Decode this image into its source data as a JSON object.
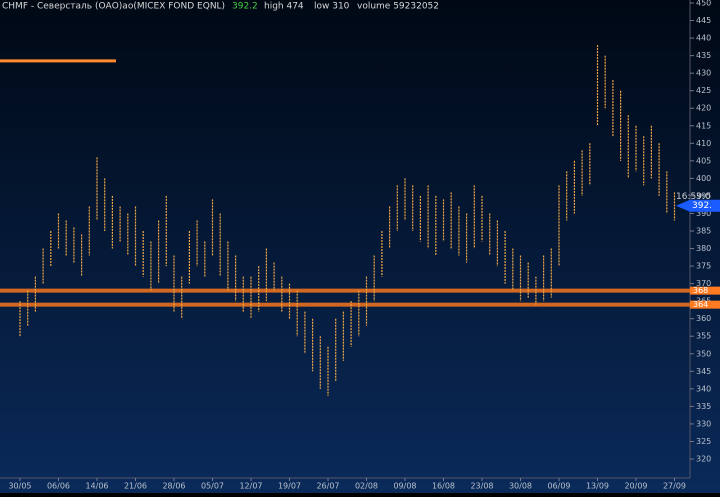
{
  "chart_data": {
    "type": "range-bar",
    "title": "CHMF - Северсталь (ОАО)ао(MICEX FOND EQNL)",
    "last": "392.2",
    "stats": [
      "high 474",
      "low 310",
      "volume 59232052"
    ],
    "time_label": "16:59:0",
    "price_marker": {
      "value": 392.2,
      "label": "392."
    },
    "levels": [
      {
        "value": 368,
        "label": "368"
      },
      {
        "value": 364,
        "label": "364"
      }
    ],
    "profile_peak": 433.5,
    "categories": [
      "30/05",
      null,
      null,
      null,
      null,
      "06/06",
      null,
      null,
      null,
      null,
      "14/06",
      null,
      null,
      null,
      null,
      "21/06",
      null,
      null,
      null,
      null,
      "28/06",
      null,
      null,
      null,
      null,
      "05/07",
      null,
      null,
      null,
      null,
      "12/07",
      null,
      null,
      null,
      null,
      "19/07",
      null,
      null,
      null,
      null,
      "26/07",
      null,
      null,
      null,
      null,
      "02/08",
      null,
      null,
      null,
      null,
      "09/08",
      null,
      null,
      null,
      null,
      "16/08",
      null,
      null,
      null,
      null,
      "23/08",
      null,
      null,
      null,
      null,
      "30/08",
      null,
      null,
      null,
      null,
      "06/09",
      null,
      null,
      null,
      null,
      "13/09",
      null,
      null,
      null,
      null,
      "20/09",
      null,
      null,
      null,
      null,
      "27/09"
    ],
    "low": [
      355,
      358,
      362,
      370,
      375,
      380,
      378,
      376,
      372,
      378,
      388,
      385,
      380,
      382,
      378,
      375,
      372,
      368,
      370,
      375,
      362,
      360,
      370,
      375,
      372,
      378,
      372,
      368,
      365,
      362,
      360,
      362,
      365,
      368,
      362,
      360,
      355,
      350,
      345,
      340,
      338,
      342,
      348,
      352,
      355,
      358,
      365,
      372,
      380,
      385,
      388,
      385,
      382,
      380,
      378,
      382,
      380,
      378,
      376,
      380,
      382,
      378,
      375,
      370,
      368,
      365,
      366,
      364,
      365,
      366,
      375,
      388,
      390,
      395,
      398,
      415,
      420,
      412,
      405,
      400,
      402,
      398,
      400,
      395,
      390,
      388
    ],
    "high": [
      365,
      368,
      372,
      380,
      385,
      390,
      388,
      386,
      384,
      392,
      406,
      400,
      395,
      392,
      390,
      392,
      385,
      382,
      388,
      395,
      378,
      372,
      385,
      388,
      382,
      394,
      390,
      382,
      378,
      372,
      372,
      375,
      380,
      376,
      372,
      370,
      368,
      362,
      360,
      355,
      352,
      360,
      362,
      365,
      368,
      372,
      378,
      385,
      392,
      398,
      400,
      398,
      395,
      398,
      395,
      394,
      396,
      392,
      390,
      398,
      395,
      390,
      388,
      385,
      380,
      378,
      376,
      372,
      378,
      380,
      398,
      402,
      405,
      408,
      410,
      438,
      435,
      428,
      425,
      418,
      415,
      412,
      415,
      410,
      402,
      396
    ],
    "color": "#f0a848",
    "ylim": [
      320,
      450
    ],
    "yticks": [
      320,
      325,
      330,
      335,
      340,
      345,
      350,
      355,
      360,
      365,
      370,
      375,
      380,
      385,
      390,
      395,
      400,
      405,
      410,
      415,
      420,
      425,
      430,
      435,
      440,
      445,
      450
    ]
  }
}
